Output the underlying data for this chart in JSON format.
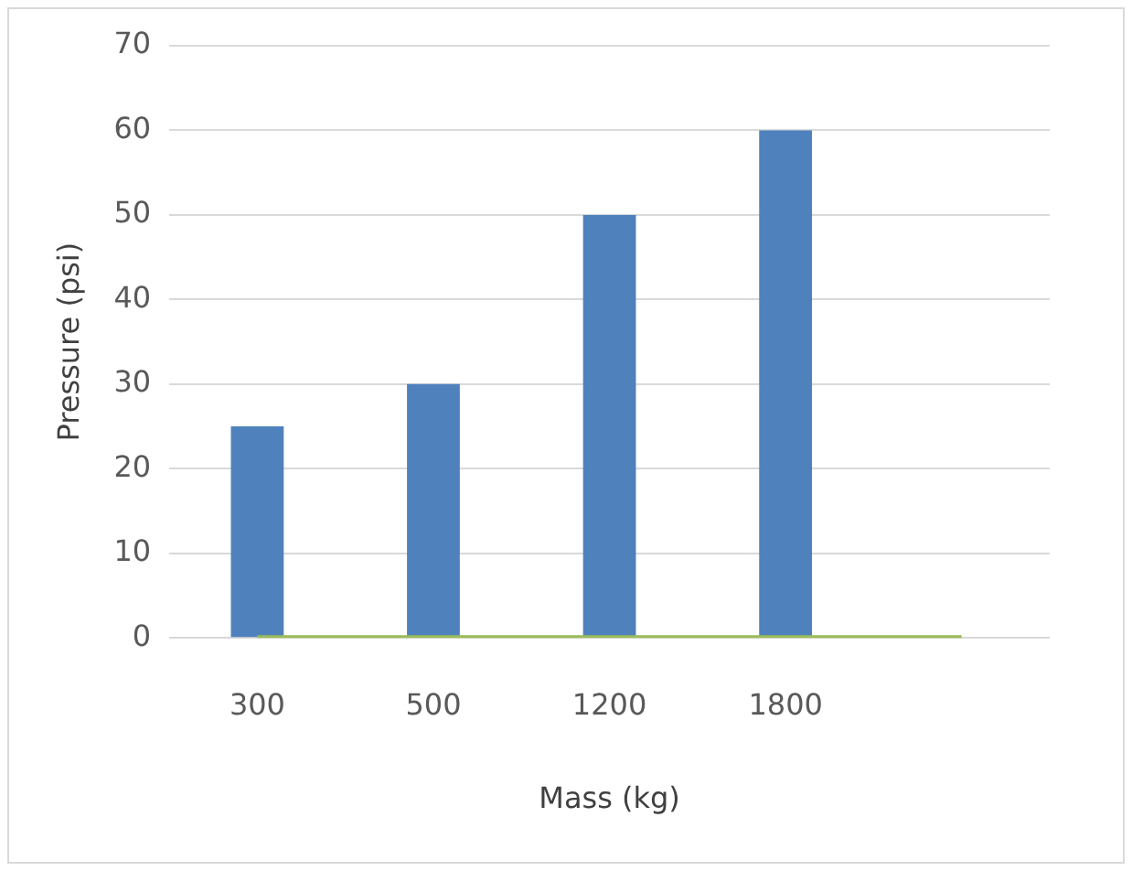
{
  "chart_data": {
    "type": "bar",
    "xlabel": "Mass (kg)",
    "ylabel": "Pressure (psi)",
    "categories": [
      "300",
      "500",
      "1200",
      "1800",
      null
    ],
    "series": [
      {
        "color": "#4f81bd",
        "values": [
          25,
          30,
          50,
          60,
          null
        ]
      },
      {
        "type": "line",
        "color": "#9bbb59",
        "values": [
          0,
          0,
          0,
          0,
          0
        ]
      }
    ],
    "ylim": [
      0,
      70
    ],
    "yticks": [
      0,
      10,
      20,
      30,
      40,
      50,
      60,
      70
    ],
    "grid": "y",
    "legend": false,
    "marker": "none"
  }
}
